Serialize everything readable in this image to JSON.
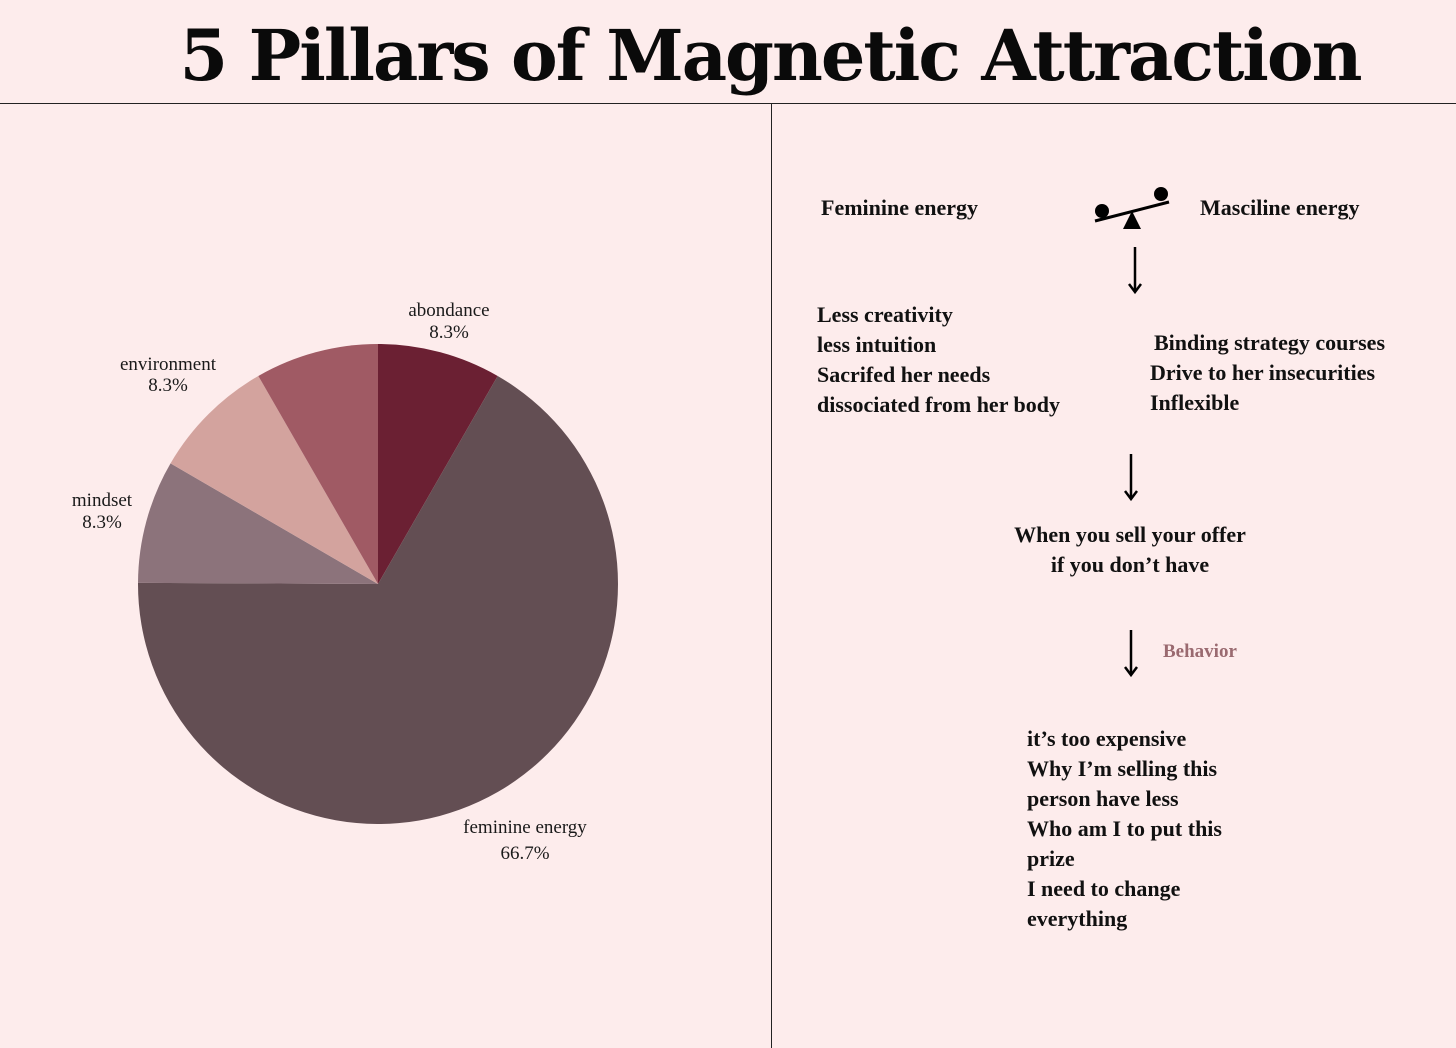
{
  "title": "5 Pillars of Magnetic Attraction",
  "colors": {
    "background": "#fdecec",
    "feminine_energy": "#634e53",
    "abondance": "#6b2033",
    "environment": "#a05a64",
    "mindset_light": "#d3a39e",
    "mindset": "#8c737b"
  },
  "chart_data": {
    "type": "pie",
    "slices": [
      {
        "label": "abondance",
        "value": 8.3,
        "display": "8.3%",
        "color": "#6b2033"
      },
      {
        "label": "feminine energy",
        "value": 66.7,
        "display": "66.7%",
        "color": "#634e53"
      },
      {
        "label": "",
        "value": 8.3,
        "display": "",
        "color": "#8c737b"
      },
      {
        "label": "",
        "value": 8.3,
        "display": "",
        "color": "#d3a39e"
      },
      {
        "label": "",
        "value": 8.3,
        "display": "",
        "color": "#a05a64"
      }
    ],
    "outer_labels": [
      {
        "label": "abondance",
        "display": "8.3%"
      },
      {
        "label": "environment",
        "display": "8.3%"
      },
      {
        "label": "mindset",
        "display": "8.3%"
      },
      {
        "label": "feminine energy",
        "display": "66.7%"
      }
    ]
  },
  "diagram": {
    "left_energy": "Feminine energy",
    "right_energy": "Masciline energy",
    "feminine_effects": [
      "Less creativity",
      "less intuition",
      "Sacrifed her needs",
      "dissociated from her body"
    ],
    "masculine_effects": [
      "Binding  strategy courses",
      "Drive to her insecurities",
      "Inflexible"
    ],
    "sell_line_1": "When you sell your offer",
    "sell_line_2": "if you don’t have",
    "behavior_label": "Behavior",
    "behaviors": [
      "it’s too expensive",
      "Why I’m selling this",
      "person have less",
      "Who am I to put this",
      "prize",
      "I need to change",
      "everything"
    ]
  }
}
